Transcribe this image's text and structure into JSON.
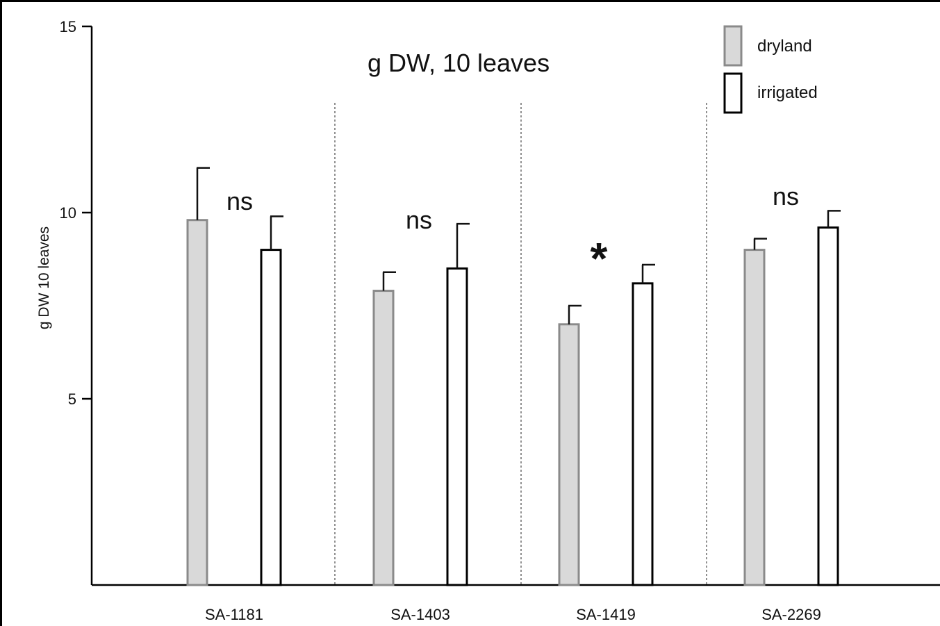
{
  "chart_data": {
    "type": "bar",
    "title": "g DW, 10 leaves",
    "ylabel": "g DW 10 leaves",
    "xlabel": "",
    "ylim": [
      0,
      15
    ],
    "yticks": [
      5,
      10,
      15
    ],
    "grid": false,
    "legend_position": "top-right",
    "categories": [
      "SA-1181",
      "SA-1403",
      "SA-1419",
      "SA-2269"
    ],
    "series": [
      {
        "name": "dryland",
        "color": "#d9d9d9",
        "edge": "#8a8a8a",
        "values": [
          9.8,
          7.9,
          7.0,
          9.0
        ],
        "errors": [
          1.4,
          0.5,
          0.5,
          0.3
        ]
      },
      {
        "name": "irrigated",
        "color": "#ffffff",
        "edge": "#000000",
        "values": [
          9.0,
          8.5,
          8.1,
          9.6
        ],
        "errors": [
          0.9,
          1.2,
          0.5,
          0.45
        ]
      }
    ],
    "annotations": [
      "ns",
      "ns",
      "*",
      "ns"
    ]
  }
}
